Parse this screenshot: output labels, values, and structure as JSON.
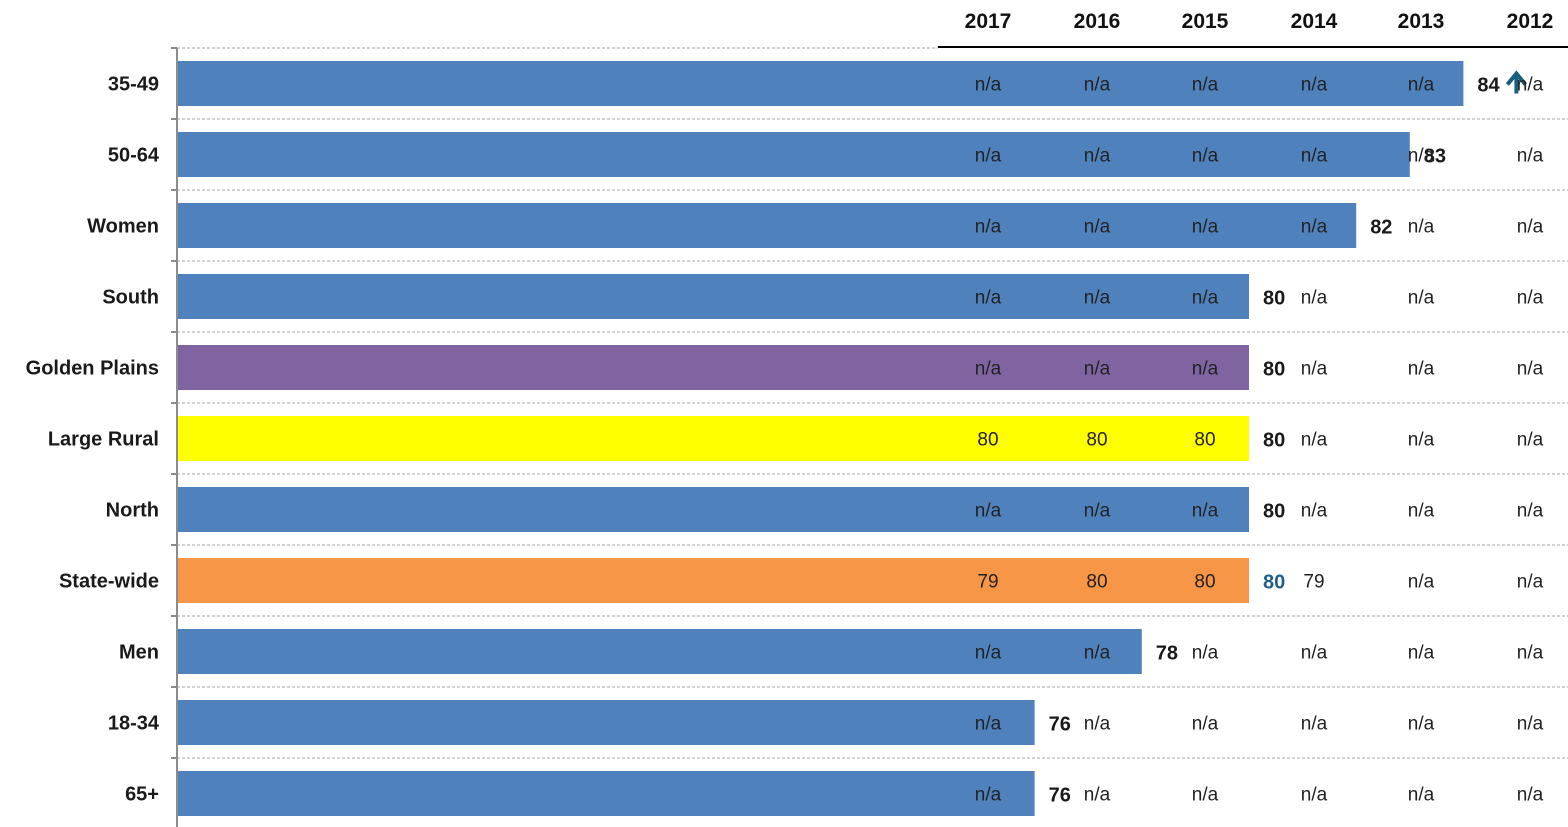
{
  "chart_data": {
    "type": "bar",
    "orientation": "horizontal",
    "categories": [
      "35-49",
      "50-64",
      "Women",
      "South",
      "Golden Plains",
      "Large Rural",
      "North",
      "State-wide",
      "Men",
      "18-34",
      "65+"
    ],
    "values": [
      84,
      83,
      82,
      80,
      80,
      80,
      80,
      80,
      78,
      76,
      76
    ],
    "value_labels": [
      "84",
      "83",
      "82",
      "80",
      "80",
      "80",
      "80",
      "80",
      "78",
      "76",
      "76"
    ],
    "bar_colors": [
      "#4f81bd",
      "#4f81bd",
      "#4f81bd",
      "#4f81bd",
      "#8064a2",
      "#ffff00",
      "#4f81bd",
      "#f79646",
      "#4f81bd",
      "#4f81bd",
      "#4f81bd"
    ],
    "value_label_colors": [
      "#1a1a1a",
      "#1a1a1a",
      "#1a1a1a",
      "#1a1a1a",
      "#1a1a1a",
      "#1a1a1a",
      "#1a1a1a",
      "#1f5f8b",
      "#1a1a1a",
      "#1a1a1a",
      "#1a1a1a"
    ],
    "annotations": [
      {
        "category": "35-49",
        "icon": "arrow-up-icon",
        "color": "#17607d"
      }
    ],
    "xlim": [
      60,
      100
    ],
    "grid": "dashed-horizontal",
    "table": {
      "columns": [
        "2017",
        "2016",
        "2015",
        "2014",
        "2013",
        "2012"
      ],
      "rows": [
        [
          "n/a",
          "n/a",
          "n/a",
          "n/a",
          "n/a",
          "n/a"
        ],
        [
          "n/a",
          "n/a",
          "n/a",
          "n/a",
          "n/a",
          "n/a"
        ],
        [
          "n/a",
          "n/a",
          "n/a",
          "n/a",
          "n/a",
          "n/a"
        ],
        [
          "n/a",
          "n/a",
          "n/a",
          "n/a",
          "n/a",
          "n/a"
        ],
        [
          "n/a",
          "n/a",
          "n/a",
          "n/a",
          "n/a",
          "n/a"
        ],
        [
          "80",
          "80",
          "80",
          "n/a",
          "n/a",
          "n/a"
        ],
        [
          "n/a",
          "n/a",
          "n/a",
          "n/a",
          "n/a",
          "n/a"
        ],
        [
          "79",
          "80",
          "80",
          "79",
          "n/a",
          "n/a"
        ],
        [
          "n/a",
          "n/a",
          "n/a",
          "n/a",
          "n/a",
          "n/a"
        ],
        [
          "n/a",
          "n/a",
          "n/a",
          "n/a",
          "n/a",
          "n/a"
        ],
        [
          "n/a",
          "n/a",
          "n/a",
          "n/a",
          "n/a",
          "n/a"
        ]
      ]
    }
  }
}
